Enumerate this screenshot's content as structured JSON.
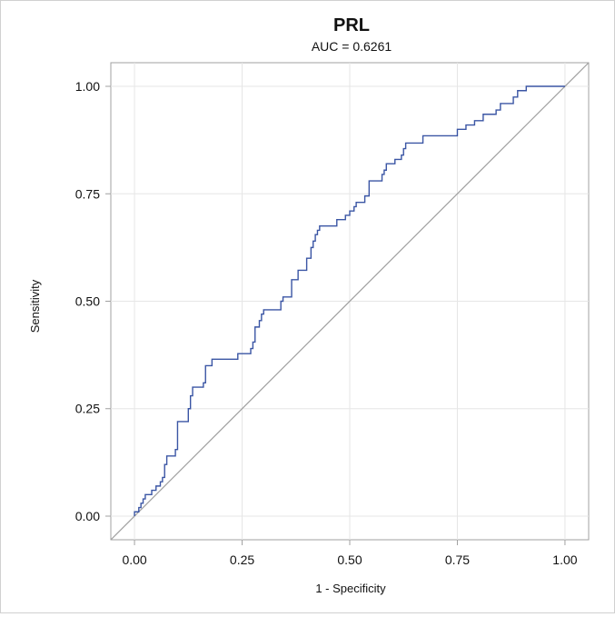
{
  "chart_data": {
    "type": "line",
    "title": "PRL",
    "subtitle": "AUC = 0.6261",
    "xlabel": "1 - Specificity",
    "ylabel": "Sensitivity",
    "xlim": [
      -0.055,
      1.055
    ],
    "ylim": [
      -0.055,
      1.055
    ],
    "x_ticks": [
      "0.00",
      "0.25",
      "0.50",
      "0.75",
      "1.00"
    ],
    "y_ticks": [
      "0.00",
      "0.25",
      "0.50",
      "0.75",
      "1.00"
    ],
    "grid": true,
    "colors": {
      "roc": "#3a55a4",
      "diagonal": "#a0a0a0",
      "grid": "#e6e6e6",
      "axis": "#a0a0a0"
    },
    "series": [
      {
        "values": [
          [
            0.0,
            0.0
          ],
          [
            0.0,
            0.01
          ],
          [
            0.01,
            0.01
          ],
          [
            0.01,
            0.02
          ],
          [
            0.015,
            0.02
          ],
          [
            0.015,
            0.03
          ],
          [
            0.02,
            0.03
          ],
          [
            0.02,
            0.04
          ],
          [
            0.025,
            0.04
          ],
          [
            0.025,
            0.05
          ],
          [
            0.04,
            0.05
          ],
          [
            0.04,
            0.06
          ],
          [
            0.05,
            0.06
          ],
          [
            0.05,
            0.07
          ],
          [
            0.06,
            0.07
          ],
          [
            0.06,
            0.08
          ],
          [
            0.065,
            0.08
          ],
          [
            0.065,
            0.09
          ],
          [
            0.07,
            0.09
          ],
          [
            0.07,
            0.1
          ],
          [
            0.07,
            0.12
          ],
          [
            0.075,
            0.12
          ],
          [
            0.075,
            0.14
          ],
          [
            0.095,
            0.14
          ],
          [
            0.095,
            0.155
          ],
          [
            0.1,
            0.155
          ],
          [
            0.1,
            0.22
          ],
          [
            0.125,
            0.22
          ],
          [
            0.125,
            0.25
          ],
          [
            0.13,
            0.25
          ],
          [
            0.13,
            0.28
          ],
          [
            0.135,
            0.28
          ],
          [
            0.135,
            0.3
          ],
          [
            0.16,
            0.3
          ],
          [
            0.16,
            0.31
          ],
          [
            0.165,
            0.31
          ],
          [
            0.165,
            0.35
          ],
          [
            0.18,
            0.35
          ],
          [
            0.18,
            0.365
          ],
          [
            0.24,
            0.365
          ],
          [
            0.24,
            0.378
          ],
          [
            0.27,
            0.378
          ],
          [
            0.27,
            0.39
          ],
          [
            0.275,
            0.39
          ],
          [
            0.275,
            0.405
          ],
          [
            0.28,
            0.405
          ],
          [
            0.28,
            0.44
          ],
          [
            0.29,
            0.44
          ],
          [
            0.29,
            0.455
          ],
          [
            0.295,
            0.455
          ],
          [
            0.295,
            0.47
          ],
          [
            0.3,
            0.47
          ],
          [
            0.3,
            0.48
          ],
          [
            0.34,
            0.48
          ],
          [
            0.34,
            0.5
          ],
          [
            0.345,
            0.5
          ],
          [
            0.345,
            0.51
          ],
          [
            0.365,
            0.51
          ],
          [
            0.365,
            0.55
          ],
          [
            0.38,
            0.55
          ],
          [
            0.38,
            0.572
          ],
          [
            0.4,
            0.572
          ],
          [
            0.4,
            0.6
          ],
          [
            0.41,
            0.6
          ],
          [
            0.41,
            0.625
          ],
          [
            0.415,
            0.625
          ],
          [
            0.415,
            0.64
          ],
          [
            0.42,
            0.64
          ],
          [
            0.42,
            0.655
          ],
          [
            0.425,
            0.655
          ],
          [
            0.425,
            0.665
          ],
          [
            0.43,
            0.665
          ],
          [
            0.43,
            0.675
          ],
          [
            0.47,
            0.675
          ],
          [
            0.47,
            0.69
          ],
          [
            0.49,
            0.69
          ],
          [
            0.49,
            0.7
          ],
          [
            0.5,
            0.7
          ],
          [
            0.5,
            0.71
          ],
          [
            0.51,
            0.71
          ],
          [
            0.51,
            0.72
          ],
          [
            0.515,
            0.72
          ],
          [
            0.515,
            0.73
          ],
          [
            0.535,
            0.73
          ],
          [
            0.535,
            0.745
          ],
          [
            0.545,
            0.745
          ],
          [
            0.545,
            0.78
          ],
          [
            0.575,
            0.78
          ],
          [
            0.575,
            0.795
          ],
          [
            0.58,
            0.795
          ],
          [
            0.58,
            0.805
          ],
          [
            0.585,
            0.805
          ],
          [
            0.585,
            0.82
          ],
          [
            0.605,
            0.82
          ],
          [
            0.605,
            0.83
          ],
          [
            0.62,
            0.83
          ],
          [
            0.62,
            0.84
          ],
          [
            0.625,
            0.84
          ],
          [
            0.625,
            0.855
          ],
          [
            0.63,
            0.855
          ],
          [
            0.63,
            0.868
          ],
          [
            0.67,
            0.868
          ],
          [
            0.67,
            0.885
          ],
          [
            0.75,
            0.885
          ],
          [
            0.75,
            0.9
          ],
          [
            0.77,
            0.9
          ],
          [
            0.77,
            0.91
          ],
          [
            0.79,
            0.91
          ],
          [
            0.79,
            0.92
          ],
          [
            0.81,
            0.92
          ],
          [
            0.81,
            0.935
          ],
          [
            0.84,
            0.935
          ],
          [
            0.84,
            0.945
          ],
          [
            0.85,
            0.945
          ],
          [
            0.85,
            0.96
          ],
          [
            0.88,
            0.96
          ],
          [
            0.88,
            0.975
          ],
          [
            0.89,
            0.975
          ],
          [
            0.89,
            0.99
          ],
          [
            0.91,
            0.99
          ],
          [
            0.91,
            1.0
          ],
          [
            1.0,
            1.0
          ]
        ]
      }
    ]
  }
}
